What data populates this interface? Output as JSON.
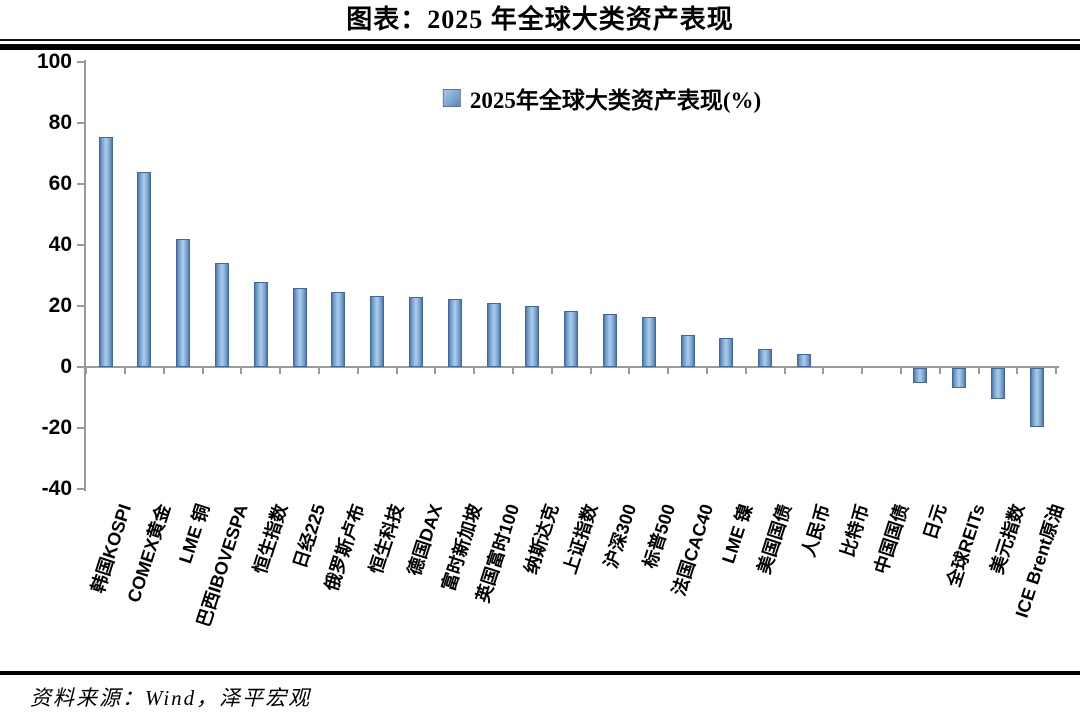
{
  "page": {
    "title": "图表：2025 年全球大类资产表现",
    "source": "资料来源：Wind，泽平宏观"
  },
  "chart_data": {
    "type": "bar",
    "title": "图表：2025 年全球大类资产表现",
    "legend": [
      "2025年全球大类资产表现(%)"
    ],
    "legend_position": "top-center",
    "categories": [
      "韩国KOSPI",
      "COMEX黄金",
      "LME 铜",
      "巴西IBOVESPA",
      "恒生指数",
      "日经225",
      "俄罗斯卢布",
      "恒生科技",
      "德国DAX",
      "富时新加坡",
      "英国富时100",
      "纳斯达克",
      "上证指数",
      "沪深300",
      "标普500",
      "法国CAC40",
      "LME 镍",
      "美国国债",
      "人民币",
      "比特币",
      "中国国债",
      "日元",
      "全球REITs",
      "美元指数",
      "ICE Brent原油"
    ],
    "values": [
      75.5,
      64,
      42,
      34,
      27.8,
      25.8,
      24.5,
      23.3,
      22.8,
      22.2,
      21,
      20,
      18.2,
      17.5,
      16.3,
      10.5,
      9.5,
      6,
      4.2,
      0,
      0,
      -5,
      -6.5,
      -10,
      -19.3
    ],
    "xlabel": "",
    "ylabel": "",
    "ylim": [
      -40,
      100
    ],
    "yticks": [
      100,
      80,
      60,
      40,
      20,
      0,
      -20,
      -40
    ],
    "grid": false,
    "bar_color": "#7EA6CE",
    "bar_edge_color": "#41699A",
    "axis_color": "#9A9A9A"
  }
}
